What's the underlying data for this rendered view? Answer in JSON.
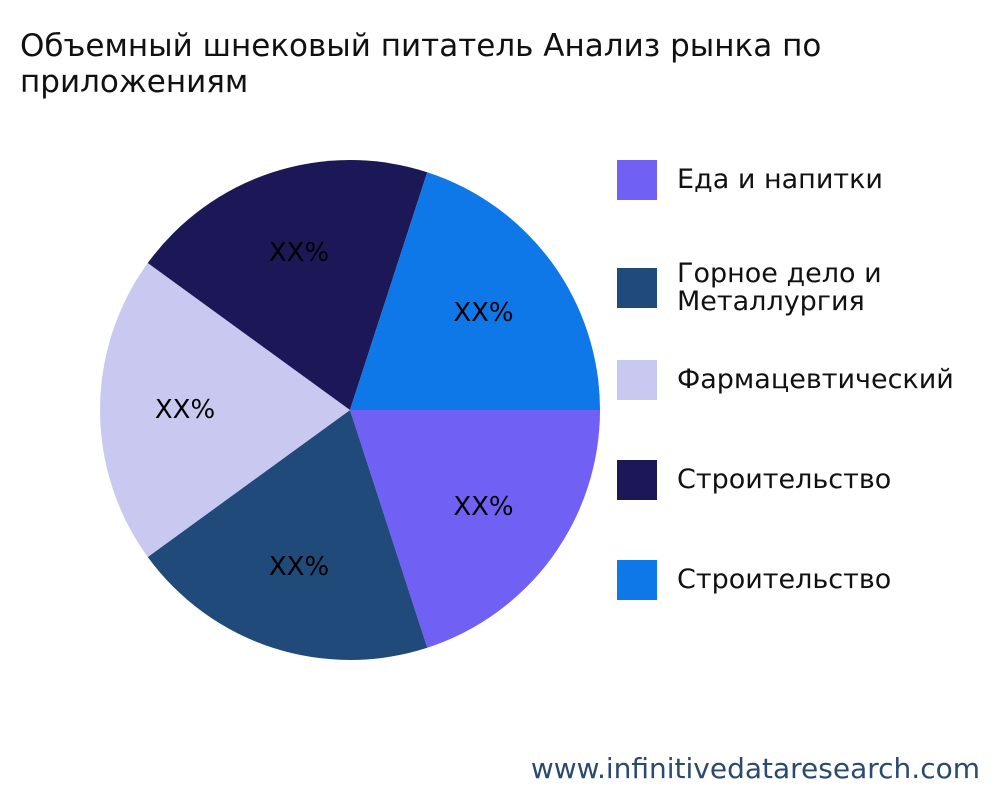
{
  "title": "Объемный шнековый питатель Анализ рынка по приложениям",
  "watermark": "www.infinitivedataresearch.com",
  "chart_data": {
    "type": "pie",
    "title": "Объемный шнековый питатель Анализ рынка по приложениям",
    "slices": [
      {
        "label": "Еда и напитки",
        "value": 20,
        "display": "XX%",
        "color": "#7060F4"
      },
      {
        "label": "Горное дело и Металлургия",
        "value": 20,
        "display": "XX%",
        "color": "#1F4A7A"
      },
      {
        "label": "Фармацевтический",
        "value": 20,
        "display": "XX%",
        "color": "#C9C8F0"
      },
      {
        "label": "Строительство",
        "value": 20,
        "display": "XX%",
        "color": "#1C1857"
      },
      {
        "label": "Строительство",
        "value": 20,
        "display": "XX%",
        "color": "#0E78E8"
      }
    ],
    "legend_position": "right"
  }
}
